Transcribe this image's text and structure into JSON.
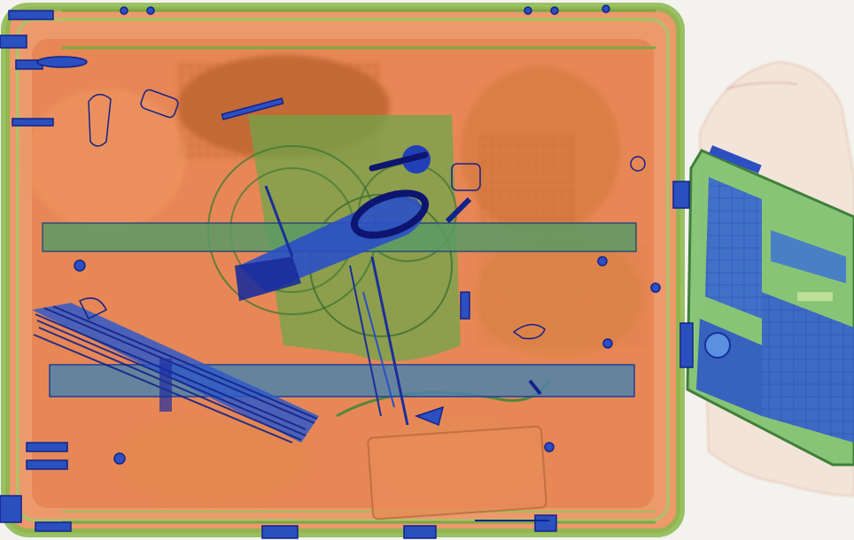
{
  "image": {
    "kind": "x-ray baggage scan",
    "objects": [
      {
        "name": "suitcase",
        "material_color": "orange"
      },
      {
        "name": "laptop",
        "material_color": "blue-green"
      },
      {
        "name": "handheld-device",
        "material_color": "dark-blue"
      },
      {
        "name": "rods-bundle",
        "material_color": "blue"
      },
      {
        "name": "cable-coil",
        "material_color": "green"
      },
      {
        "name": "wrapper-bag",
        "material_color": "light-orange"
      }
    ],
    "colors": {
      "background": "#f4f2ee",
      "organic": "#e07a45",
      "organic_dark": "#b55a2a",
      "mixed": "#7db04a",
      "metal": "#2f55c8",
      "metal_dark": "#13238a"
    }
  }
}
